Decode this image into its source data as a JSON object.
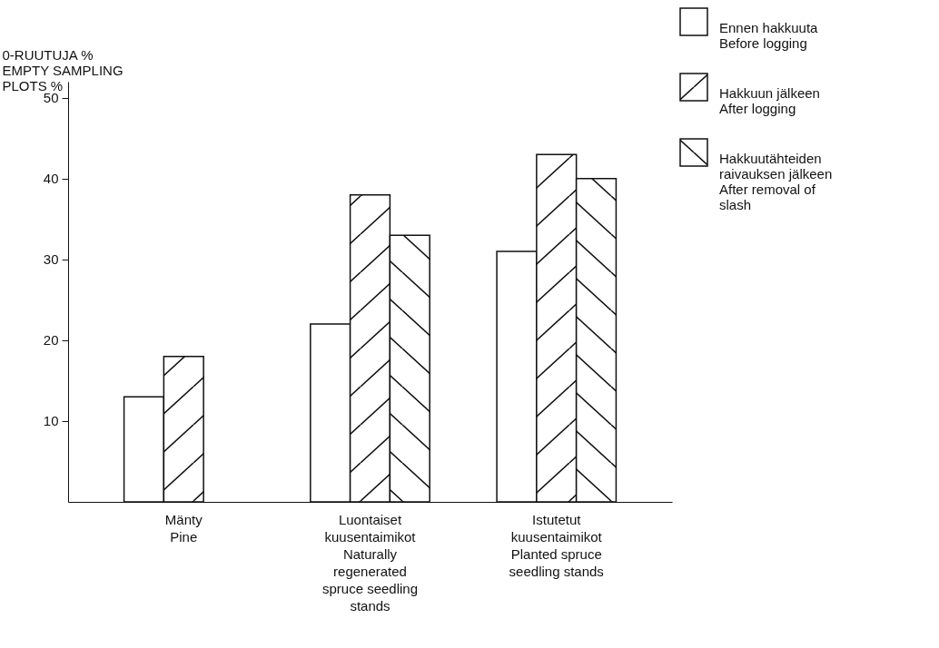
{
  "chart_data": {
    "type": "bar",
    "ylabel": "0-RUUTUJA %\nEMPTY SAMPLING\nPLOTS %",
    "categories": [
      "Mänty\nPine",
      "Luontaiset\nkuusentaimikot\nNaturally\nregenerated\nspruce seedling\nstands",
      "Istutetut\nkuusentaimikot\nPlanted spruce\nseedling stands"
    ],
    "series": [
      {
        "name": "Ennen hakkuuta\nBefore logging",
        "color": "#ffffff",
        "values": [
          13,
          22,
          31
        ]
      },
      {
        "name": "Hakkuun jälkeen\nAfter logging",
        "color": "#111111",
        "values": [
          18,
          38,
          43
        ]
      },
      {
        "name": "Hakkuutähteiden\nraivauksen jälkeen\nAfter removal of\nslash",
        "color": "#111111",
        "values": [
          null,
          33,
          40
        ]
      }
    ],
    "ylim": [
      0,
      52
    ],
    "yticks": [
      10,
      20,
      30,
      40,
      50
    ],
    "grid": false,
    "legend": "top right"
  }
}
